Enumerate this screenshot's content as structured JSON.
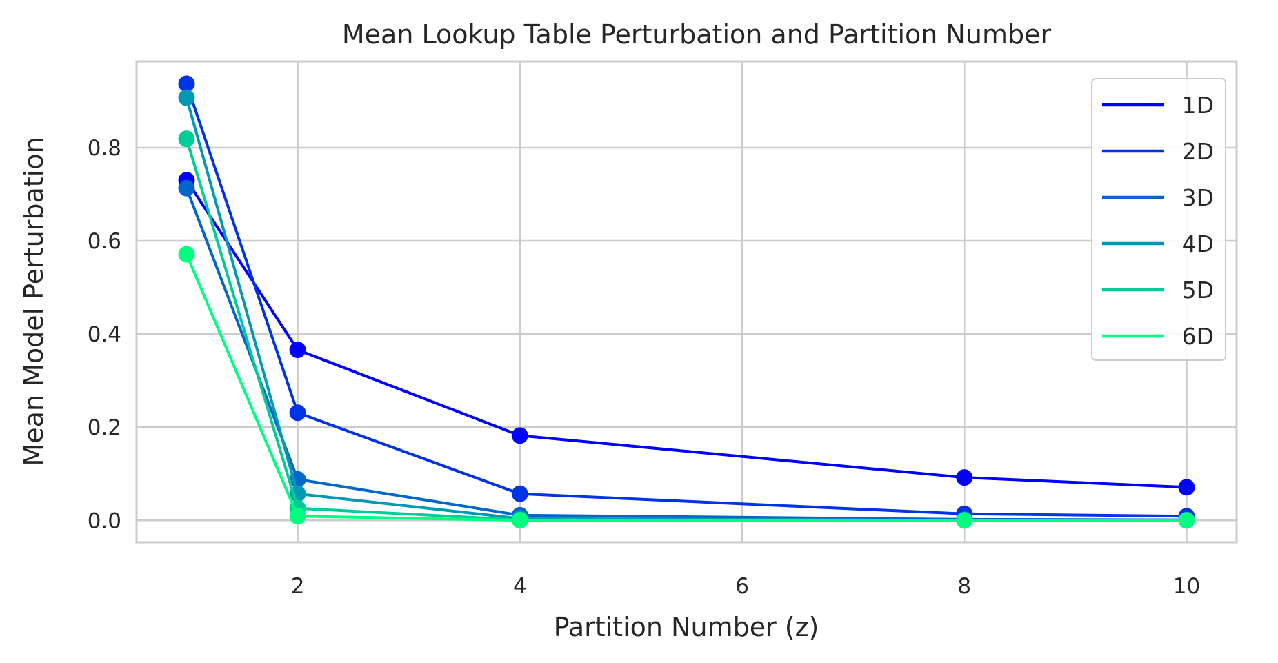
{
  "chart_data": {
    "type": "line",
    "title": "Mean Lookup Table Perturbation and Partition Number",
    "xlabel": "Partition Number (z)",
    "ylabel": "Mean Model Perturbation",
    "xlim": [
      0.55,
      10.45
    ],
    "ylim": [
      -0.047,
      0.985
    ],
    "x_ticks": [
      2,
      4,
      6,
      8,
      10
    ],
    "x_tick_labels": [
      "2",
      "4",
      "6",
      "8",
      "10"
    ],
    "y_ticks": [
      0.0,
      0.2,
      0.4,
      0.6,
      0.8
    ],
    "y_tick_labels": [
      "0.0",
      "0.2",
      "0.4",
      "0.6",
      "0.8"
    ],
    "grid": true,
    "legend_position": "top-right",
    "x": [
      1,
      2,
      4,
      8,
      10
    ],
    "series": [
      {
        "name": "1D",
        "color": "#0000ff",
        "values": [
          0.73,
          0.366,
          0.182,
          0.092,
          0.071
        ]
      },
      {
        "name": "2D",
        "color": "#0033e6",
        "values": [
          0.937,
          0.231,
          0.057,
          0.014,
          0.009
        ]
      },
      {
        "name": "3D",
        "color": "#0066cc",
        "values": [
          0.713,
          0.088,
          0.011,
          0.002,
          0.001
        ]
      },
      {
        "name": "4D",
        "color": "#0099b3",
        "values": [
          0.907,
          0.057,
          0.004,
          0.0,
          0.0
        ]
      },
      {
        "name": "5D",
        "color": "#00cc99",
        "values": [
          0.819,
          0.026,
          0.001,
          0.0,
          0.0
        ]
      },
      {
        "name": "6D",
        "color": "#00ff80",
        "values": [
          0.571,
          0.009,
          0.0,
          0.0,
          0.0
        ]
      }
    ]
  }
}
